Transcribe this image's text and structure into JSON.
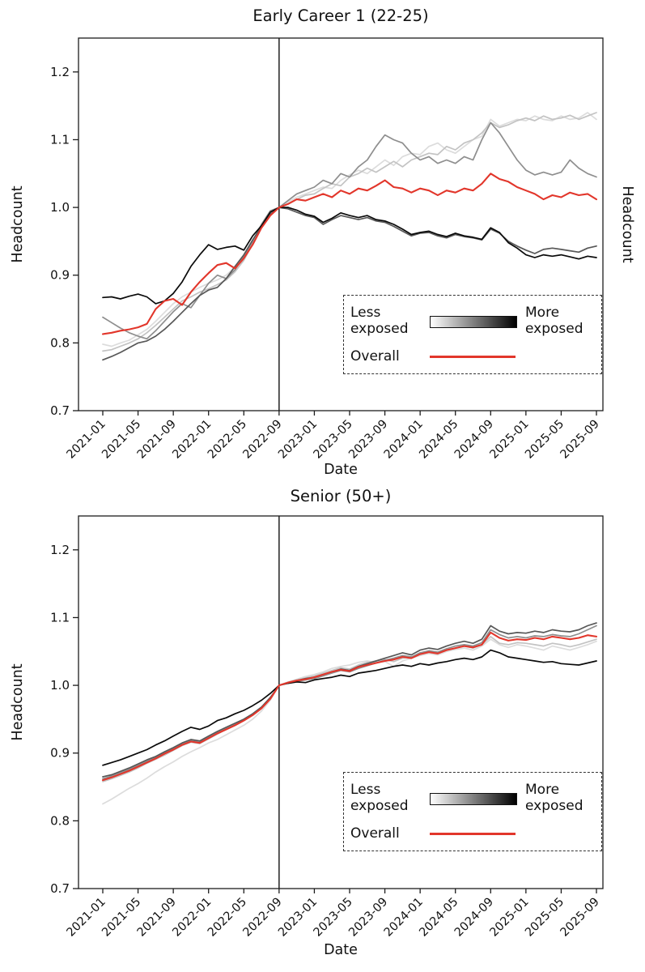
{
  "legend": {
    "less_line1": "Less",
    "less_line2": "exposed",
    "more_line1": "More",
    "more_line2": "exposed",
    "overall_label": "Overall",
    "gradient": [
      "#ffffff",
      "#000000"
    ],
    "overall_color": "#e2362b"
  },
  "chart_data": [
    {
      "type": "line",
      "title": "Early Career 1 (22-25)",
      "xlabel": "Date",
      "ylabel": "Headcount",
      "ylabel_right": "Headcount",
      "ylim": [
        0.7,
        1.25
      ],
      "yticks": [
        0.7,
        0.8,
        0.9,
        1.0,
        1.1,
        1.2
      ],
      "grid": false,
      "legend_position": "lower right",
      "x_start": "2021-01",
      "x_end": "2025-09",
      "x_tick_positions": [
        0,
        4,
        8,
        12,
        16,
        20,
        24,
        28,
        32,
        36,
        40,
        44,
        48,
        52,
        56
      ],
      "x_tick_labels": [
        "2021-01",
        "2021-05",
        "2021-09",
        "2022-01",
        "2022-05",
        "2022-09",
        "2023-01",
        "2023-05",
        "2023-09",
        "2024-01",
        "2024-05",
        "2024-09",
        "2025-01",
        "2025-05",
        "2025-09"
      ],
      "vline_date": "2022-09",
      "vline_month_index": 20,
      "series": [
        {
          "name": "quintile-1-least-exposed",
          "color": "#dcdcdc",
          "width": 1.7,
          "values": [
            0.798,
            0.795,
            0.8,
            0.804,
            0.812,
            0.82,
            0.832,
            0.845,
            0.858,
            0.868,
            0.875,
            0.882,
            0.888,
            0.893,
            0.9,
            0.912,
            0.93,
            0.95,
            0.972,
            0.992,
            1.0,
            1.008,
            1.015,
            1.02,
            1.025,
            1.03,
            1.028,
            1.04,
            1.048,
            1.055,
            1.05,
            1.06,
            1.07,
            1.062,
            1.075,
            1.08,
            1.078,
            1.09,
            1.095,
            1.085,
            1.08,
            1.09,
            1.1,
            1.105,
            1.13,
            1.12,
            1.125,
            1.13,
            1.128,
            1.135,
            1.13,
            1.128,
            1.135,
            1.13,
            1.132,
            1.14,
            1.13
          ]
        },
        {
          "name": "quintile-2",
          "color": "#c3c3c3",
          "width": 1.7,
          "values": [
            0.788,
            0.79,
            0.795,
            0.8,
            0.806,
            0.815,
            0.826,
            0.838,
            0.85,
            0.862,
            0.868,
            0.875,
            0.88,
            0.886,
            0.893,
            0.905,
            0.922,
            0.946,
            0.97,
            0.99,
            1.0,
            1.005,
            1.012,
            1.018,
            1.02,
            1.028,
            1.035,
            1.032,
            1.045,
            1.05,
            1.058,
            1.052,
            1.06,
            1.068,
            1.06,
            1.07,
            1.075,
            1.08,
            1.078,
            1.09,
            1.085,
            1.095,
            1.1,
            1.11,
            1.125,
            1.118,
            1.122,
            1.128,
            1.132,
            1.128,
            1.135,
            1.13,
            1.132,
            1.136,
            1.13,
            1.135,
            1.14
          ]
        },
        {
          "name": "quintile-3",
          "color": "#8e8e8e",
          "width": 1.7,
          "values": [
            0.838,
            0.83,
            0.822,
            0.815,
            0.81,
            0.806,
            0.818,
            0.832,
            0.846,
            0.858,
            0.852,
            0.87,
            0.888,
            0.9,
            0.895,
            0.908,
            0.928,
            0.95,
            0.975,
            0.995,
            1.0,
            1.01,
            1.02,
            1.025,
            1.03,
            1.04,
            1.035,
            1.05,
            1.045,
            1.06,
            1.07,
            1.09,
            1.107,
            1.1,
            1.095,
            1.08,
            1.07,
            1.075,
            1.065,
            1.07,
            1.065,
            1.075,
            1.07,
            1.1,
            1.125,
            1.11,
            1.09,
            1.07,
            1.055,
            1.048,
            1.052,
            1.048,
            1.052,
            1.07,
            1.058,
            1.05,
            1.045
          ]
        },
        {
          "name": "quintile-4",
          "color": "#575757",
          "width": 1.7,
          "values": [
            0.775,
            0.78,
            0.786,
            0.793,
            0.8,
            0.803,
            0.81,
            0.82,
            0.832,
            0.845,
            0.858,
            0.87,
            0.878,
            0.882,
            0.895,
            0.913,
            0.93,
            0.952,
            0.972,
            0.99,
            1.0,
            0.998,
            0.993,
            0.988,
            0.985,
            0.975,
            0.982,
            0.988,
            0.985,
            0.982,
            0.985,
            0.98,
            0.978,
            0.972,
            0.965,
            0.958,
            0.962,
            0.963,
            0.958,
            0.955,
            0.96,
            0.957,
            0.955,
            0.952,
            0.968,
            0.962,
            0.95,
            0.943,
            0.937,
            0.932,
            0.938,
            0.94,
            0.938,
            0.936,
            0.934,
            0.94,
            0.943
          ]
        },
        {
          "name": "quintile-5-most-exposed",
          "color": "#0a0a0a",
          "width": 1.7,
          "values": [
            0.867,
            0.868,
            0.865,
            0.869,
            0.872,
            0.868,
            0.858,
            0.862,
            0.873,
            0.89,
            0.913,
            0.93,
            0.945,
            0.938,
            0.941,
            0.943,
            0.937,
            0.958,
            0.973,
            0.993,
            1.0,
            1.0,
            0.996,
            0.99,
            0.987,
            0.978,
            0.984,
            0.992,
            0.988,
            0.985,
            0.988,
            0.982,
            0.98,
            0.975,
            0.968,
            0.96,
            0.963,
            0.965,
            0.96,
            0.957,
            0.962,
            0.958,
            0.956,
            0.953,
            0.97,
            0.963,
            0.948,
            0.94,
            0.93,
            0.926,
            0.93,
            0.928,
            0.93,
            0.927,
            0.924,
            0.928,
            0.926
          ]
        },
        {
          "name": "overall",
          "color": "#e2362b",
          "width": 2.1,
          "values": [
            0.813,
            0.815,
            0.818,
            0.82,
            0.823,
            0.828,
            0.85,
            0.862,
            0.865,
            0.856,
            0.875,
            0.89,
            0.903,
            0.915,
            0.918,
            0.91,
            0.925,
            0.945,
            0.97,
            0.988,
            1.0,
            1.005,
            1.012,
            1.01,
            1.015,
            1.02,
            1.015,
            1.025,
            1.02,
            1.028,
            1.025,
            1.032,
            1.04,
            1.03,
            1.028,
            1.022,
            1.028,
            1.025,
            1.018,
            1.025,
            1.022,
            1.028,
            1.025,
            1.035,
            1.05,
            1.042,
            1.038,
            1.03,
            1.025,
            1.02,
            1.012,
            1.018,
            1.015,
            1.022,
            1.018,
            1.02,
            1.012
          ]
        }
      ]
    },
    {
      "type": "line",
      "title": "Senior (50+)",
      "xlabel": "Date",
      "ylabel": "Headcount",
      "ylim": [
        0.7,
        1.25
      ],
      "yticks": [
        0.7,
        0.8,
        0.9,
        1.0,
        1.1,
        1.2
      ],
      "grid": false,
      "legend_position": "lower right",
      "x_start": "2021-01",
      "x_end": "2025-09",
      "x_tick_positions": [
        0,
        4,
        8,
        12,
        16,
        20,
        24,
        28,
        32,
        36,
        40,
        44,
        48,
        52,
        56
      ],
      "x_tick_labels": [
        "2021-01",
        "2021-05",
        "2021-09",
        "2022-01",
        "2022-05",
        "2022-09",
        "2023-01",
        "2023-05",
        "2023-09",
        "2024-01",
        "2024-05",
        "2024-09",
        "2025-01",
        "2025-05",
        "2025-09"
      ],
      "vline_date": "2022-09",
      "vline_month_index": 20,
      "series": [
        {
          "name": "quintile-1-least-exposed",
          "color": "#dcdcdc",
          "width": 1.7,
          "values": [
            0.825,
            0.832,
            0.84,
            0.848,
            0.855,
            0.863,
            0.872,
            0.88,
            0.887,
            0.895,
            0.902,
            0.908,
            0.915,
            0.92,
            0.927,
            0.934,
            0.941,
            0.95,
            0.962,
            0.978,
            1.0,
            1.005,
            1.009,
            1.013,
            1.016,
            1.02,
            1.025,
            1.028,
            1.03,
            1.034,
            1.036,
            1.034,
            1.035,
            1.028,
            1.036,
            1.04,
            1.044,
            1.047,
            1.045,
            1.05,
            1.053,
            1.055,
            1.052,
            1.058,
            1.068,
            1.06,
            1.056,
            1.06,
            1.058,
            1.055,
            1.052,
            1.058,
            1.055,
            1.052,
            1.056,
            1.06,
            1.065
          ]
        },
        {
          "name": "quintile-2",
          "color": "#c3c3c3",
          "width": 1.7,
          "values": [
            0.858,
            0.862,
            0.867,
            0.872,
            0.878,
            0.885,
            0.891,
            0.897,
            0.904,
            0.911,
            0.916,
            0.914,
            0.921,
            0.928,
            0.935,
            0.941,
            0.948,
            0.956,
            0.966,
            0.98,
            1.0,
            1.004,
            1.008,
            1.011,
            1.014,
            1.018,
            1.022,
            1.026,
            1.024,
            1.03,
            1.034,
            1.036,
            1.038,
            1.035,
            1.04,
            1.042,
            1.046,
            1.05,
            1.048,
            1.052,
            1.055,
            1.058,
            1.055,
            1.06,
            1.072,
            1.062,
            1.06,
            1.063,
            1.062,
            1.06,
            1.058,
            1.062,
            1.06,
            1.057,
            1.06,
            1.064,
            1.068
          ]
        },
        {
          "name": "quintile-3",
          "color": "#8e8e8e",
          "width": 1.7,
          "values": [
            0.862,
            0.866,
            0.871,
            0.876,
            0.882,
            0.888,
            0.894,
            0.9,
            0.906,
            0.913,
            0.918,
            0.916,
            0.923,
            0.93,
            0.936,
            0.942,
            0.949,
            0.957,
            0.967,
            0.981,
            1.0,
            1.003,
            1.006,
            1.008,
            1.01,
            1.014,
            1.018,
            1.022,
            1.02,
            1.025,
            1.029,
            1.033,
            1.037,
            1.04,
            1.044,
            1.042,
            1.048,
            1.051,
            1.049,
            1.054,
            1.058,
            1.06,
            1.058,
            1.063,
            1.082,
            1.075,
            1.07,
            1.072,
            1.07,
            1.073,
            1.072,
            1.075,
            1.073,
            1.072,
            1.076,
            1.082,
            1.088
          ]
        },
        {
          "name": "quintile-4",
          "color": "#575757",
          "width": 1.7,
          "values": [
            0.865,
            0.868,
            0.873,
            0.878,
            0.884,
            0.89,
            0.895,
            0.902,
            0.908,
            0.915,
            0.92,
            0.918,
            0.925,
            0.932,
            0.938,
            0.944,
            0.95,
            0.958,
            0.968,
            0.982,
            1.0,
            1.004,
            1.007,
            1.01,
            1.012,
            1.016,
            1.02,
            1.024,
            1.022,
            1.028,
            1.032,
            1.036,
            1.04,
            1.044,
            1.048,
            1.045,
            1.052,
            1.055,
            1.053,
            1.058,
            1.062,
            1.065,
            1.062,
            1.068,
            1.088,
            1.08,
            1.076,
            1.078,
            1.077,
            1.08,
            1.078,
            1.082,
            1.08,
            1.079,
            1.082,
            1.088,
            1.092
          ]
        },
        {
          "name": "quintile-5-most-exposed",
          "color": "#0a0a0a",
          "width": 1.7,
          "values": [
            0.882,
            0.886,
            0.89,
            0.895,
            0.9,
            0.905,
            0.912,
            0.918,
            0.925,
            0.932,
            0.938,
            0.935,
            0.94,
            0.948,
            0.952,
            0.958,
            0.963,
            0.97,
            0.978,
            0.988,
            1.0,
            1.003,
            1.005,
            1.004,
            1.008,
            1.01,
            1.012,
            1.015,
            1.013,
            1.018,
            1.02,
            1.022,
            1.025,
            1.028,
            1.03,
            1.028,
            1.032,
            1.03,
            1.033,
            1.035,
            1.038,
            1.04,
            1.038,
            1.042,
            1.052,
            1.048,
            1.042,
            1.04,
            1.038,
            1.036,
            1.034,
            1.035,
            1.032,
            1.031,
            1.03,
            1.033,
            1.036
          ]
        },
        {
          "name": "overall",
          "color": "#e2362b",
          "width": 2.1,
          "values": [
            0.86,
            0.864,
            0.869,
            0.874,
            0.88,
            0.886,
            0.892,
            0.899,
            0.905,
            0.912,
            0.917,
            0.915,
            0.922,
            0.929,
            0.935,
            0.941,
            0.948,
            0.956,
            0.966,
            0.98,
            1.0,
            1.004,
            1.007,
            1.009,
            1.012,
            1.016,
            1.02,
            1.023,
            1.021,
            1.027,
            1.03,
            1.033,
            1.036,
            1.038,
            1.042,
            1.04,
            1.046,
            1.049,
            1.047,
            1.052,
            1.055,
            1.058,
            1.056,
            1.06,
            1.078,
            1.07,
            1.066,
            1.068,
            1.067,
            1.07,
            1.068,
            1.072,
            1.07,
            1.068,
            1.07,
            1.074,
            1.072
          ]
        }
      ]
    }
  ]
}
